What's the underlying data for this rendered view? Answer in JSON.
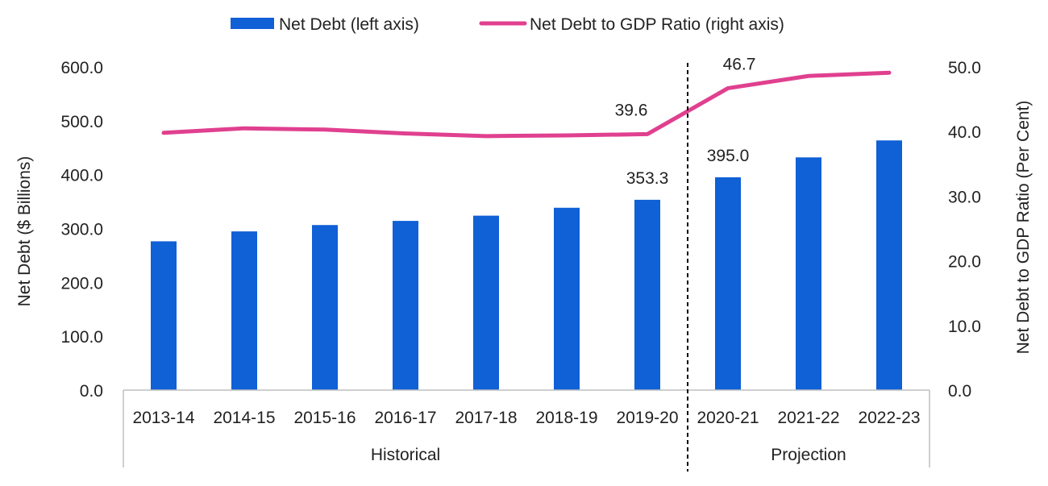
{
  "colors": {
    "bar": "#1060D6",
    "line": "#E0408F",
    "axis": "#bfbfbf",
    "divider": "#000000"
  },
  "legend": {
    "bar_label": "Net Debt (left axis)",
    "line_label": "Net Debt to GDP Ratio (right axis)"
  },
  "groups": [
    {
      "label": "Historical"
    },
    {
      "label": "Projection"
    }
  ],
  "chart_data": {
    "type": "bar",
    "categories": [
      "2013-14",
      "2014-15",
      "2015-16",
      "2016-17",
      "2017-18",
      "2018-19",
      "2019-20",
      "2020-21",
      "2021-22",
      "2022-23"
    ],
    "series": [
      {
        "name": "Net Debt (left axis)",
        "type": "bar",
        "axis": "left",
        "values": [
          276.2,
          294.6,
          306.4,
          314.1,
          323.8,
          338.5,
          353.3,
          395.0,
          432.0,
          463.5
        ],
        "labels": [
          "",
          "",
          "",
          "",
          "",
          "",
          "353.3",
          "395.0",
          "",
          ""
        ]
      },
      {
        "name": "Net Debt to GDP Ratio (right axis)",
        "type": "line",
        "axis": "right",
        "values": [
          39.8,
          40.5,
          40.3,
          39.7,
          39.3,
          39.4,
          39.6,
          46.7,
          48.6,
          49.1
        ],
        "labels": [
          "",
          "",
          "",
          "",
          "",
          "",
          "39.6",
          "46.7",
          "",
          ""
        ]
      }
    ],
    "ylabel": "Net Debt ($ Billions)",
    "y2label": "Net Debt to GDP Ratio (Per Cent)",
    "ylim": [
      0,
      600
    ],
    "y2lim": [
      0,
      50
    ],
    "yticks": [
      "0.0",
      "100.0",
      "200.0",
      "300.0",
      "400.0",
      "500.0",
      "600.0"
    ],
    "y2ticks": [
      "0.0",
      "10.0",
      "20.0",
      "30.0",
      "40.0",
      "50.0"
    ],
    "grid": false,
    "legend_position": "top"
  }
}
